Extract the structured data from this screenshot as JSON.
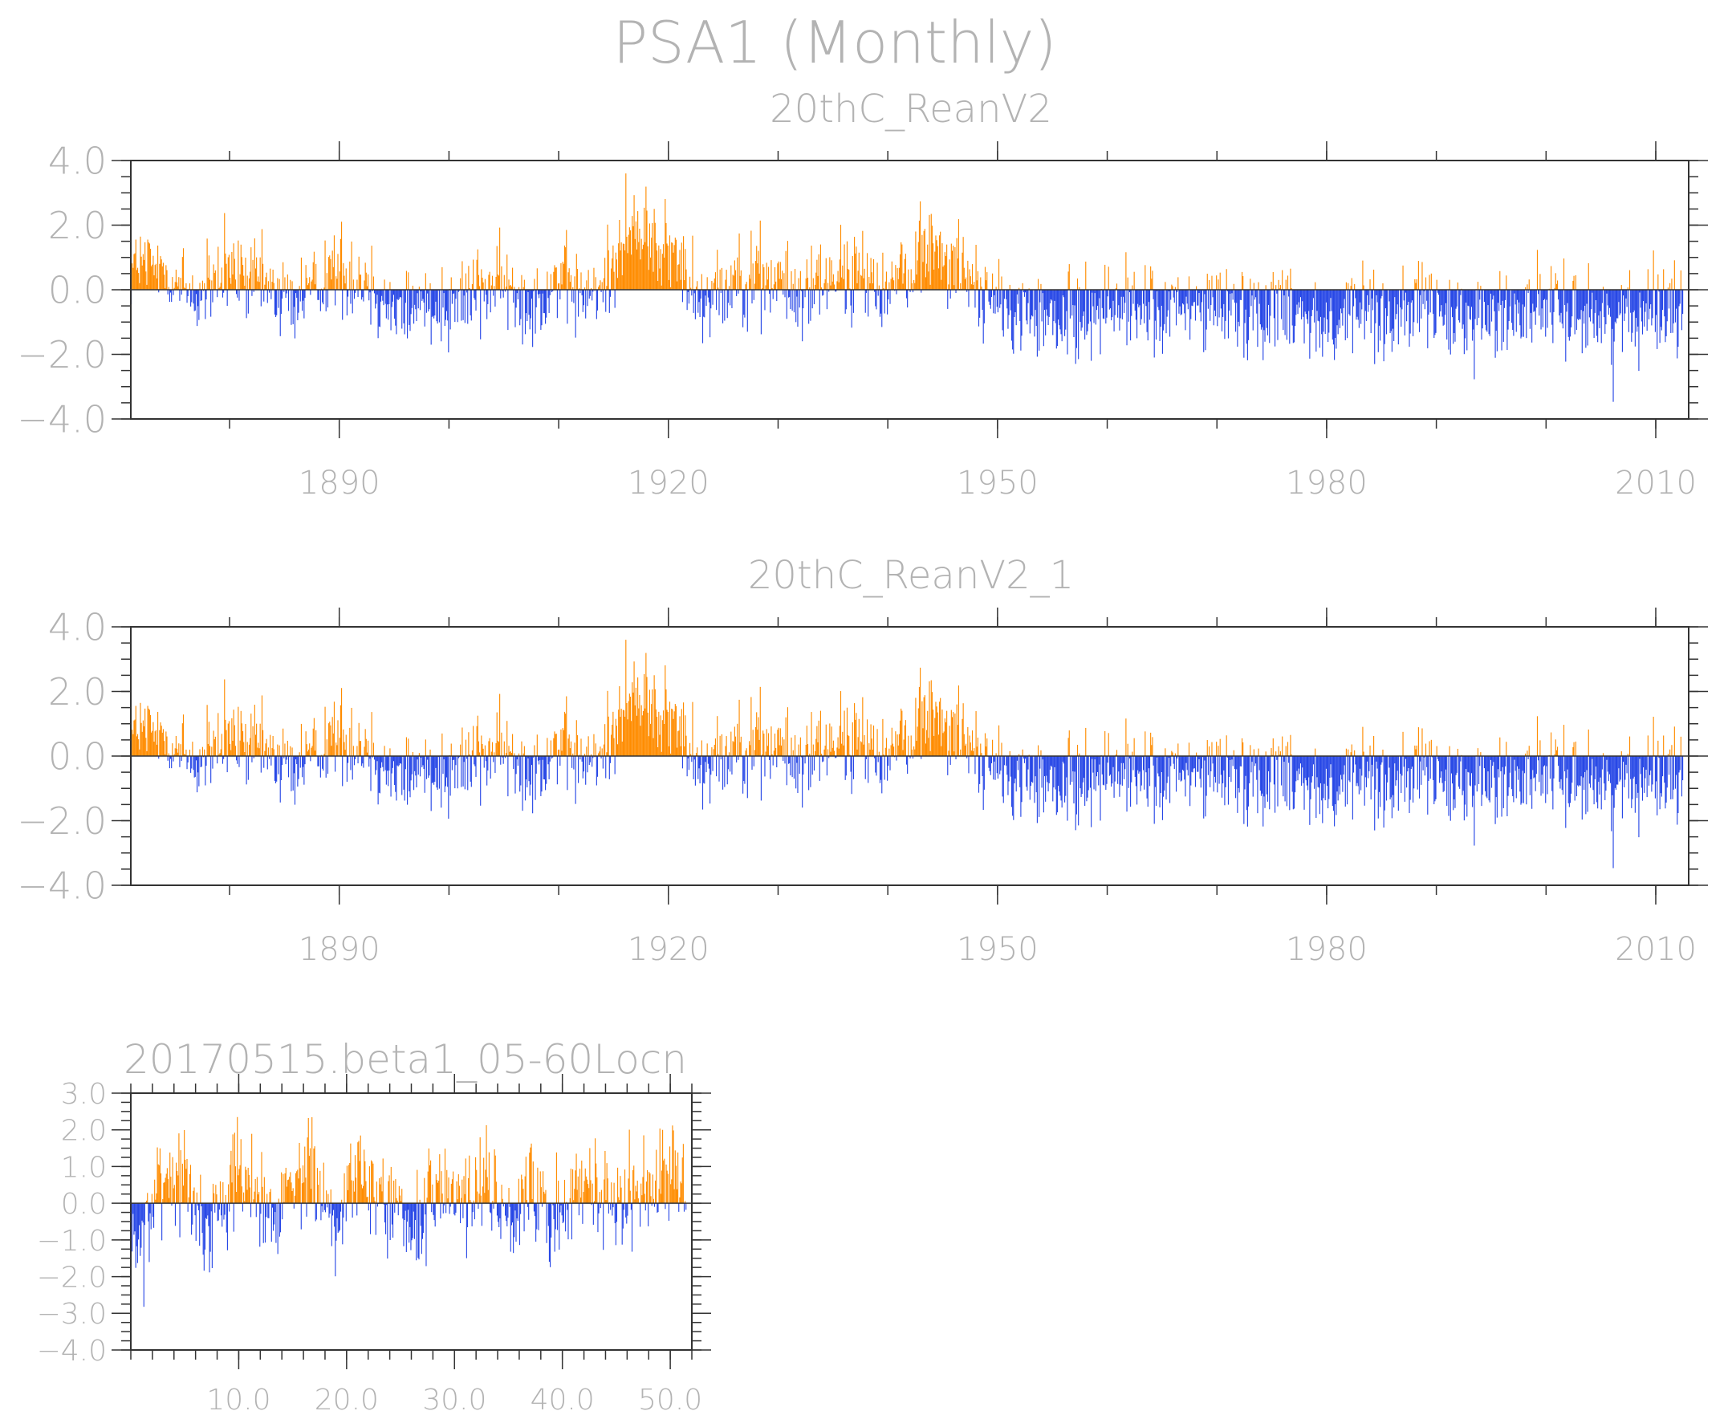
{
  "figure": {
    "title": "PSA1 (Monthly)",
    "colors": {
      "positive": "#ff8c00",
      "negative": "#2747e6",
      "frame": "#333333",
      "text": "#b3b3b3"
    }
  },
  "chart_data": [
    {
      "type": "bar",
      "title": "20thC_ReanV2",
      "xlabel": "",
      "ylabel": "",
      "x_range": [
        1871,
        2013
      ],
      "ylim": [
        -4.0,
        4.0
      ],
      "x_tick_labels": [
        "1890",
        "1920",
        "1950",
        "1980",
        "2010"
      ],
      "y_tick_labels": [
        "4.0",
        "2.0",
        "0.0",
        "-2.0",
        "-4.0"
      ],
      "grid": false,
      "description_values": "monthly bars, orange above zero, blue below zero",
      "annual_mean_approx": {
        "x": [
          1871,
          1874,
          1877,
          1880,
          1883,
          1886,
          1889,
          1892,
          1895,
          1898,
          1901,
          1904,
          1907,
          1910,
          1913,
          1916,
          1918,
          1920,
          1923,
          1926,
          1929,
          1932,
          1935,
          1938,
          1941,
          1944,
          1947,
          1950,
          1953,
          1956,
          1959,
          1962,
          1965,
          1968,
          1971,
          1974,
          1977,
          1980,
          1983,
          1986,
          1989,
          1992,
          1995,
          1998,
          2001,
          2004,
          2007,
          2010,
          2012
        ],
        "y": [
          0.8,
          0.6,
          -0.3,
          0.5,
          0.2,
          -0.4,
          0.6,
          0.4,
          -0.6,
          -0.4,
          -0.3,
          0.3,
          -0.5,
          0.4,
          -0.4,
          1.6,
          1.8,
          1.2,
          -0.2,
          0.4,
          0.3,
          -0.2,
          0.5,
          0.3,
          0.2,
          1.5,
          0.6,
          -0.6,
          -0.8,
          -1.0,
          -0.6,
          -0.4,
          -0.8,
          -0.6,
          -0.5,
          -0.7,
          -0.4,
          -1.2,
          -0.6,
          -0.8,
          -0.6,
          -1.0,
          -0.9,
          -0.5,
          -0.6,
          -0.7,
          -1.0,
          -0.3,
          -0.6
        ]
      }
    },
    {
      "type": "bar",
      "title": "20thC_ReanV2_1",
      "xlabel": "",
      "ylabel": "",
      "x_range": [
        1871,
        2013
      ],
      "ylim": [
        -4.0,
        4.0
      ],
      "x_tick_labels": [
        "1890",
        "1920",
        "1950",
        "1980",
        "2010"
      ],
      "y_tick_labels": [
        "4.0",
        "2.0",
        "0.0",
        "-2.0",
        "-4.0"
      ],
      "grid": false,
      "annual_mean_approx": {
        "x": [
          1871,
          1874,
          1877,
          1880,
          1883,
          1886,
          1889,
          1892,
          1895,
          1898,
          1901,
          1904,
          1907,
          1910,
          1913,
          1916,
          1918,
          1920,
          1923,
          1926,
          1929,
          1932,
          1935,
          1938,
          1941,
          1944,
          1947,
          1950,
          1953,
          1956,
          1959,
          1962,
          1965,
          1968,
          1971,
          1974,
          1977,
          1980,
          1983,
          1986,
          1989,
          1992,
          1995,
          1998,
          2001,
          2004,
          2007,
          2010,
          2012
        ],
        "y": [
          0.8,
          0.6,
          -0.3,
          0.5,
          0.2,
          -0.4,
          0.6,
          0.4,
          -0.6,
          -0.4,
          -0.3,
          0.3,
          -0.5,
          0.4,
          -0.4,
          1.6,
          1.8,
          1.2,
          -0.2,
          0.4,
          0.3,
          -0.2,
          0.5,
          0.3,
          0.2,
          1.5,
          0.6,
          -0.6,
          -0.8,
          -1.0,
          -0.6,
          -0.4,
          -0.8,
          -0.6,
          -0.5,
          -0.7,
          -0.4,
          -1.2,
          -0.6,
          -0.8,
          -0.6,
          -1.0,
          -0.9,
          -0.5,
          -0.6,
          -0.7,
          -1.0,
          -0.3,
          -0.6
        ]
      }
    },
    {
      "type": "bar",
      "title": "20170515.beta1_05-60Locn",
      "xlabel": "",
      "ylabel": "",
      "x_range": [
        0.0,
        52.0
      ],
      "ylim": [
        -4.0,
        3.0
      ],
      "x_tick_labels": [
        "10.0",
        "20.0",
        "30.0",
        "40.0",
        "50.0"
      ],
      "y_tick_labels": [
        "3.0",
        "2.0",
        "1.0",
        "0.0",
        "-1.0",
        "-2.0",
        "-3.0",
        "-4.0"
      ],
      "grid": false,
      "annual_mean_approx": {
        "x": [
          1,
          3,
          5,
          7,
          9,
          11,
          13,
          15,
          17,
          19,
          21,
          23,
          25,
          27,
          29,
          31,
          33,
          35,
          37,
          39,
          41,
          43,
          45,
          47,
          49,
          51
        ],
        "y": [
          -1.0,
          0.9,
          0.6,
          -0.8,
          0.4,
          0.7,
          -0.4,
          0.8,
          0.6,
          -0.3,
          1.0,
          0.5,
          -0.4,
          -0.6,
          0.6,
          0.2,
          0.7,
          -0.5,
          0.7,
          -0.8,
          0.3,
          0.6,
          -0.4,
          0.5,
          0.9,
          0.6
        ]
      }
    }
  ]
}
